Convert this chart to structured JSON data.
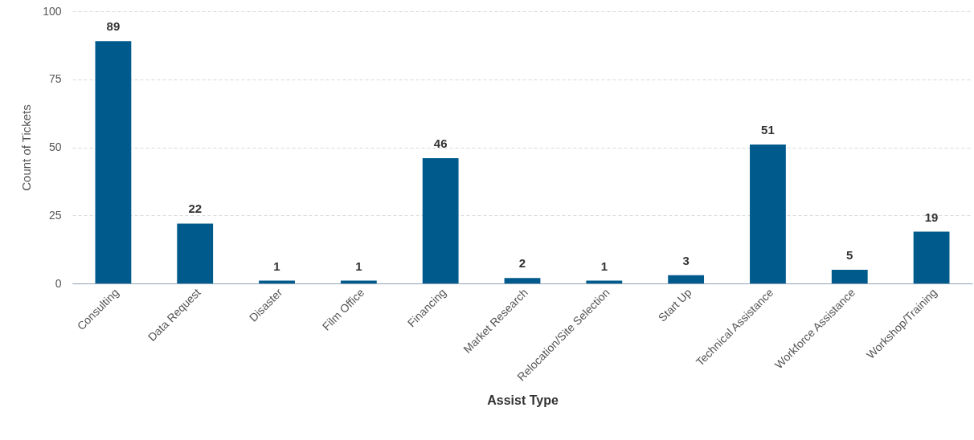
{
  "chart_data": {
    "type": "bar",
    "xlabel": "Assist Type",
    "ylabel": "Count of Tickets",
    "categories": [
      "Consulting",
      "Data Request",
      "Disaster",
      "Film Office",
      "Financing",
      "Market Research",
      "Relocation/Site Selection",
      "Start Up",
      "Technical Assistance",
      "Workforce Assistance",
      "Workshop/Training"
    ],
    "values": [
      89,
      22,
      1,
      1,
      46,
      2,
      1,
      3,
      51,
      5,
      19
    ],
    "color": "#005a8c",
    "ylim": [
      0,
      100
    ],
    "yticks": [
      0,
      25,
      50,
      75,
      100
    ],
    "grid": "y",
    "data_labels": true
  }
}
